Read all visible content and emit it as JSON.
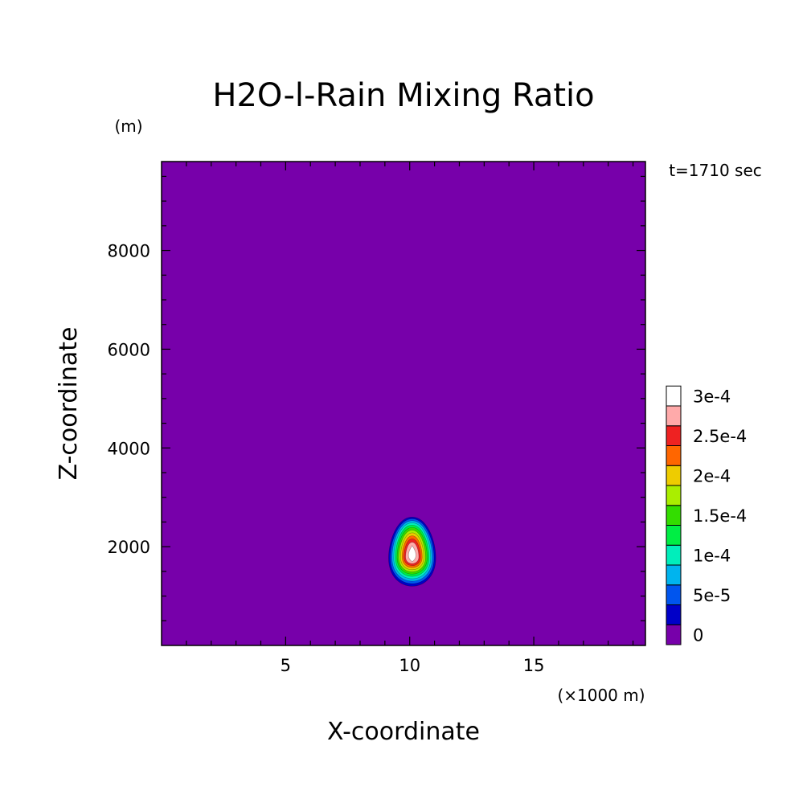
{
  "chart_data": {
    "type": "heatmap",
    "title": "H2O-l-Rain Mixing Ratio",
    "time_label": "t=1710 sec",
    "xlabel": "X-coordinate",
    "ylabel": "Z-coordinate",
    "x_unit": "(×1000 m)",
    "y_unit": "(m)",
    "xlim": [
      0,
      19.5
    ],
    "ylim": [
      0,
      9800
    ],
    "x_ticks": [
      {
        "value": 5,
        "label": "5"
      },
      {
        "value": 10,
        "label": "10"
      },
      {
        "value": 15,
        "label": "15"
      }
    ],
    "y_ticks": [
      {
        "value": 2000,
        "label": "2000"
      },
      {
        "value": 4000,
        "label": "4000"
      },
      {
        "value": 6000,
        "label": "6000"
      },
      {
        "value": 8000,
        "label": "8000"
      }
    ],
    "background_color": "#7700aa",
    "contour_levels": [
      {
        "level": 0,
        "color": "#7700aa"
      },
      {
        "level": 2.5e-05,
        "color": "#0000c8"
      },
      {
        "level": 5e-05,
        "color": "#0055ee"
      },
      {
        "level": 7.5e-05,
        "color": "#00b4ee"
      },
      {
        "level": 0.0001,
        "color": "#00eebb"
      },
      {
        "level": 0.000125,
        "color": "#00ee44"
      },
      {
        "level": 0.00015,
        "color": "#33dd00"
      },
      {
        "level": 0.000175,
        "color": "#aaee00"
      },
      {
        "level": 0.0002,
        "color": "#eecc00"
      },
      {
        "level": 0.000225,
        "color": "#ff6600"
      },
      {
        "level": 0.00025,
        "color": "#ee2222"
      },
      {
        "level": 0.000275,
        "color": "#ffaaaa"
      },
      {
        "level": 0.0003,
        "color": "#ffffff"
      }
    ],
    "colorbar_labels": [
      {
        "index": 0,
        "label": "0"
      },
      {
        "index": 2,
        "label": "5e-5"
      },
      {
        "index": 4,
        "label": "1e-4"
      },
      {
        "index": 6,
        "label": "1.5e-4"
      },
      {
        "index": 8,
        "label": "2e-4"
      },
      {
        "index": 10,
        "label": "2.5e-4"
      },
      {
        "index": 12,
        "label": "3e-4"
      }
    ],
    "features": [
      {
        "name": "rain-cell",
        "center_x": 10.1,
        "center_z": 1800,
        "max_value": 0.0003,
        "x_extent": [
          9.2,
          11.1
        ],
        "z_extent": [
          1200,
          2600
        ]
      }
    ]
  }
}
